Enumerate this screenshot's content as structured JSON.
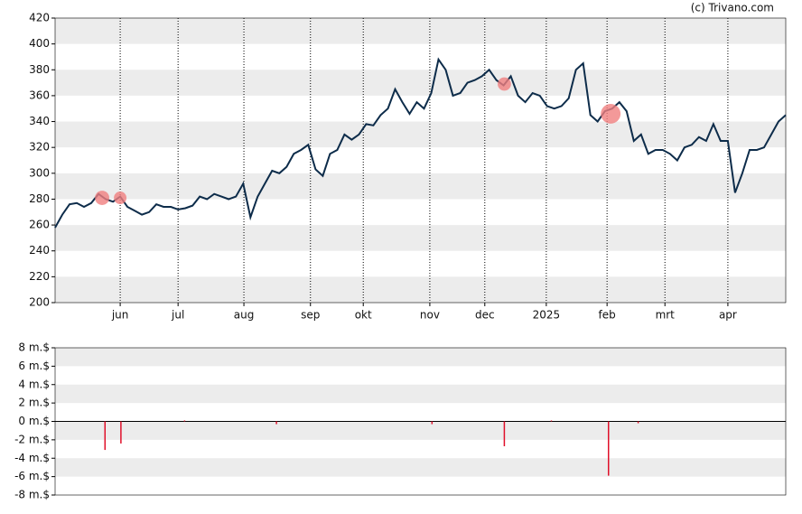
{
  "credit": "(c) Trivano.com",
  "chart_data": [
    {
      "type": "line",
      "color": "#0d2c4a",
      "values": [
        258,
        268,
        276,
        277,
        274,
        277,
        284,
        280,
        278,
        282,
        274,
        271,
        268,
        270,
        276,
        274,
        274,
        272,
        273,
        275,
        282,
        280,
        284,
        282,
        280,
        282,
        292,
        266,
        282,
        292,
        302,
        300,
        305,
        315,
        318,
        322,
        303,
        298,
        315,
        318,
        330,
        326,
        330,
        338,
        337,
        345,
        350,
        365,
        355,
        346,
        355,
        350,
        362,
        388,
        380,
        360,
        362,
        370,
        372,
        375,
        380,
        372,
        368,
        375,
        360,
        355,
        362,
        360,
        352,
        350,
        352,
        358,
        380,
        385,
        345,
        340,
        348,
        350,
        355,
        348,
        325,
        330,
        315,
        318,
        318,
        315,
        310,
        320,
        322,
        328,
        325,
        338,
        325,
        325,
        285,
        300,
        318,
        318,
        320,
        330,
        340,
        345
      ],
      "xlim": [
        0,
        101
      ],
      "xticks": [
        {
          "value": 9,
          "label": "jun"
        },
        {
          "value": 17,
          "label": "jul"
        },
        {
          "value": 26.1,
          "label": "aug"
        },
        {
          "value": 35.3,
          "label": "sep"
        },
        {
          "value": 42.6,
          "label": "okt"
        },
        {
          "value": 51.8,
          "label": "nov"
        },
        {
          "value": 59.4,
          "label": "dec"
        },
        {
          "value": 67.9,
          "label": "2025"
        },
        {
          "value": 76.3,
          "label": "feb"
        },
        {
          "value": 84.3,
          "label": "mrt"
        },
        {
          "value": 93,
          "label": "apr"
        }
      ],
      "ylim": [
        200,
        420
      ],
      "yticks": [
        200,
        220,
        240,
        260,
        280,
        300,
        320,
        340,
        360,
        380,
        400,
        420
      ],
      "markers": {
        "color": "#f08080",
        "x": [
          6.5,
          9,
          62.1,
          76.8
        ],
        "values": [
          281,
          281,
          369,
          346
        ],
        "sizes": [
          3.1,
          2.4,
          2.7,
          5.9
        ]
      }
    },
    {
      "type": "bar",
      "color": "#e0102a",
      "x": [
        6.9,
        9.1,
        17.9,
        30.6,
        52.1,
        62.1,
        68.6,
        76.5,
        80.6
      ],
      "values": [
        -3.1,
        -2.4,
        0.1,
        -0.3,
        -0.3,
        -2.7,
        0.1,
        -5.9,
        -0.2
      ],
      "xlim": [
        0,
        101
      ],
      "ylim": [
        -8,
        8
      ],
      "yticks": [
        {
          "value": -8,
          "label": "-8 m.$"
        },
        {
          "value": -6,
          "label": "-6 m.$"
        },
        {
          "value": -4,
          "label": "-4 m.$"
        },
        {
          "value": -2,
          "label": "-2 m.$"
        },
        {
          "value": 0,
          "label": "0 m.$"
        },
        {
          "value": 2,
          "label": "2 m.$"
        },
        {
          "value": 4,
          "label": "4 m.$"
        },
        {
          "value": 6,
          "label": "6 m.$"
        },
        {
          "value": 8,
          "label": "8 m.$"
        }
      ]
    }
  ]
}
